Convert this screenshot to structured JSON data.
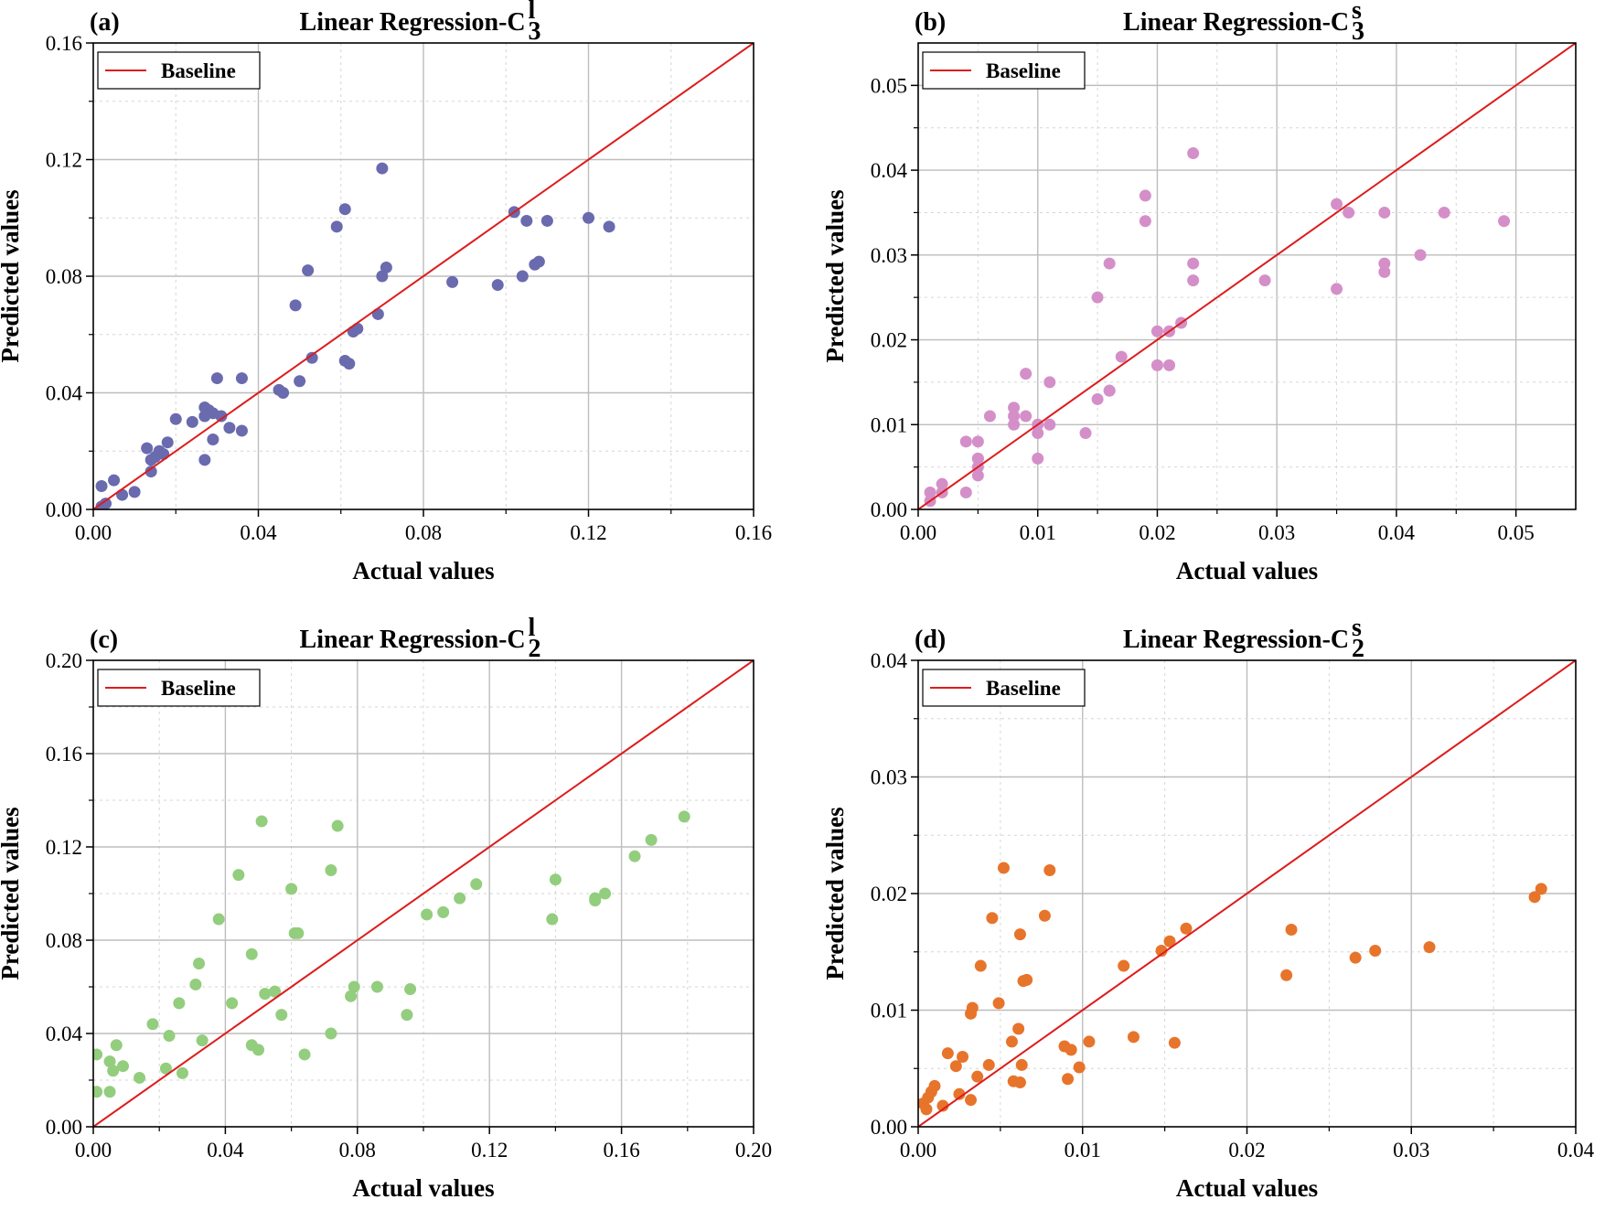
{
  "baseline_color": "#dd1c1c",
  "chart_data": [
    {
      "type": "scatter",
      "panel_label": "(a)",
      "title": "Linear Regression-C",
      "title_sup": "l",
      "title_sub": "3",
      "xlabel": "Actual values",
      "ylabel": "Predicted values",
      "xlim": [
        0,
        0.16
      ],
      "ylim": [
        0,
        0.16
      ],
      "xticks": [
        0,
        0.04,
        0.08,
        0.12,
        0.16
      ],
      "yticks": [
        0,
        0.04,
        0.08,
        0.12,
        0.16
      ],
      "xtick_labels": [
        "0.00",
        "0.04",
        "0.08",
        "0.12",
        "0.16"
      ],
      "ytick_labels": [
        "0.00",
        "0.04",
        "0.08",
        "0.12",
        "0.16"
      ],
      "color": "#6a6aaf",
      "legend": "Baseline",
      "legend_position": "top-left",
      "grid": true,
      "baseline": "y = x",
      "points": [
        [
          0.002,
          0.001
        ],
        [
          0.003,
          0.002
        ],
        [
          0.002,
          0.008
        ],
        [
          0.005,
          0.01
        ],
        [
          0.007,
          0.005
        ],
        [
          0.01,
          0.006
        ],
        [
          0.013,
          0.021
        ],
        [
          0.014,
          0.013
        ],
        [
          0.014,
          0.017
        ],
        [
          0.015,
          0.018
        ],
        [
          0.016,
          0.02
        ],
        [
          0.017,
          0.019
        ],
        [
          0.018,
          0.023
        ],
        [
          0.02,
          0.031
        ],
        [
          0.024,
          0.03
        ],
        [
          0.027,
          0.035
        ],
        [
          0.027,
          0.032
        ],
        [
          0.028,
          0.034
        ],
        [
          0.029,
          0.033
        ],
        [
          0.027,
          0.017
        ],
        [
          0.029,
          0.024
        ],
        [
          0.03,
          0.045
        ],
        [
          0.031,
          0.032
        ],
        [
          0.033,
          0.028
        ],
        [
          0.036,
          0.045
        ],
        [
          0.036,
          0.027
        ],
        [
          0.045,
          0.041
        ],
        [
          0.046,
          0.04
        ],
        [
          0.049,
          0.07
        ],
        [
          0.05,
          0.044
        ],
        [
          0.052,
          0.082
        ],
        [
          0.053,
          0.052
        ],
        [
          0.059,
          0.097
        ],
        [
          0.061,
          0.103
        ],
        [
          0.061,
          0.051
        ],
        [
          0.062,
          0.05
        ],
        [
          0.063,
          0.061
        ],
        [
          0.064,
          0.062
        ],
        [
          0.069,
          0.067
        ],
        [
          0.07,
          0.117
        ],
        [
          0.07,
          0.08
        ],
        [
          0.071,
          0.083
        ],
        [
          0.087,
          0.078
        ],
        [
          0.098,
          0.077
        ],
        [
          0.102,
          0.102
        ],
        [
          0.104,
          0.08
        ],
        [
          0.105,
          0.099
        ],
        [
          0.107,
          0.084
        ],
        [
          0.108,
          0.085
        ],
        [
          0.11,
          0.099
        ],
        [
          0.12,
          0.1
        ],
        [
          0.125,
          0.097
        ]
      ]
    },
    {
      "type": "scatter",
      "panel_label": "(b)",
      "title": "Linear Regression-C",
      "title_sup": "s",
      "title_sub": "3",
      "xlabel": "Actual values",
      "ylabel": "Predicted values",
      "xlim": [
        0,
        0.055
      ],
      "ylim": [
        0,
        0.055
      ],
      "xticks": [
        0,
        0.01,
        0.02,
        0.03,
        0.04,
        0.05
      ],
      "yticks": [
        0,
        0.01,
        0.02,
        0.03,
        0.04,
        0.05
      ],
      "xtick_labels": [
        "0.00",
        "0.01",
        "0.02",
        "0.03",
        "0.04",
        "0.05"
      ],
      "ytick_labels": [
        "0.00",
        "0.01",
        "0.02",
        "0.03",
        "0.04",
        "0.05"
      ],
      "color": "#d48fc8",
      "legend": "Baseline",
      "legend_position": "top-left",
      "grid": true,
      "baseline": "y = x",
      "points": [
        [
          0.001,
          0.001
        ],
        [
          0.001,
          0.002
        ],
        [
          0.002,
          0.003
        ],
        [
          0.002,
          0.002
        ],
        [
          0.004,
          0.002
        ],
        [
          0.004,
          0.008
        ],
        [
          0.005,
          0.006
        ],
        [
          0.005,
          0.004
        ],
        [
          0.005,
          0.005
        ],
        [
          0.005,
          0.006
        ],
        [
          0.005,
          0.008
        ],
        [
          0.006,
          0.011
        ],
        [
          0.008,
          0.01
        ],
        [
          0.008,
          0.011
        ],
        [
          0.008,
          0.012
        ],
        [
          0.009,
          0.011
        ],
        [
          0.009,
          0.016
        ],
        [
          0.01,
          0.01
        ],
        [
          0.01,
          0.009
        ],
        [
          0.01,
          0.006
        ],
        [
          0.011,
          0.01
        ],
        [
          0.011,
          0.015
        ],
        [
          0.014,
          0.009
        ],
        [
          0.015,
          0.013
        ],
        [
          0.015,
          0.025
        ],
        [
          0.016,
          0.014
        ],
        [
          0.016,
          0.014
        ],
        [
          0.016,
          0.029
        ],
        [
          0.017,
          0.018
        ],
        [
          0.019,
          0.034
        ],
        [
          0.019,
          0.037
        ],
        [
          0.02,
          0.017
        ],
        [
          0.02,
          0.021
        ],
        [
          0.021,
          0.021
        ],
        [
          0.021,
          0.017
        ],
        [
          0.022,
          0.022
        ],
        [
          0.023,
          0.027
        ],
        [
          0.023,
          0.029
        ],
        [
          0.023,
          0.042
        ],
        [
          0.029,
          0.027
        ],
        [
          0.035,
          0.026
        ],
        [
          0.035,
          0.036
        ],
        [
          0.036,
          0.035
        ],
        [
          0.039,
          0.035
        ],
        [
          0.039,
          0.028
        ],
        [
          0.039,
          0.029
        ],
        [
          0.042,
          0.03
        ],
        [
          0.044,
          0.035
        ],
        [
          0.049,
          0.034
        ]
      ]
    },
    {
      "type": "scatter",
      "panel_label": "(c)",
      "title": "Linear Regression-C",
      "title_sup": "l",
      "title_sub": "2",
      "xlabel": "Actual values",
      "ylabel": "Predicted values",
      "xlim": [
        0,
        0.2
      ],
      "ylim": [
        0,
        0.2
      ],
      "xticks": [
        0,
        0.04,
        0.08,
        0.12,
        0.16,
        0.2
      ],
      "yticks": [
        0,
        0.04,
        0.08,
        0.12,
        0.16,
        0.2
      ],
      "xtick_labels": [
        "0.00",
        "0.04",
        "0.08",
        "0.12",
        "0.16",
        "0.20"
      ],
      "ytick_labels": [
        "0.00",
        "0.04",
        "0.08",
        "0.12",
        "0.16",
        "0.20"
      ],
      "color": "#93cd7e",
      "legend": "Baseline",
      "legend_position": "top-left",
      "grid": true,
      "baseline": "y = x",
      "points": [
        [
          0.001,
          0.015
        ],
        [
          0.001,
          0.031
        ],
        [
          0.005,
          0.028
        ],
        [
          0.005,
          0.015
        ],
        [
          0.006,
          0.024
        ],
        [
          0.007,
          0.035
        ],
        [
          0.009,
          0.026
        ],
        [
          0.014,
          0.021
        ],
        [
          0.018,
          0.044
        ],
        [
          0.022,
          0.025
        ],
        [
          0.023,
          0.039
        ],
        [
          0.026,
          0.053
        ],
        [
          0.027,
          0.023
        ],
        [
          0.031,
          0.061
        ],
        [
          0.032,
          0.07
        ],
        [
          0.033,
          0.037
        ],
        [
          0.038,
          0.089
        ],
        [
          0.042,
          0.053
        ],
        [
          0.044,
          0.108
        ],
        [
          0.048,
          0.035
        ],
        [
          0.048,
          0.074
        ],
        [
          0.05,
          0.033
        ],
        [
          0.051,
          0.131
        ],
        [
          0.052,
          0.057
        ],
        [
          0.055,
          0.058
        ],
        [
          0.057,
          0.048
        ],
        [
          0.06,
          0.102
        ],
        [
          0.061,
          0.083
        ],
        [
          0.062,
          0.083
        ],
        [
          0.064,
          0.031
        ],
        [
          0.072,
          0.04
        ],
        [
          0.072,
          0.11
        ],
        [
          0.074,
          0.129
        ],
        [
          0.078,
          0.056
        ],
        [
          0.079,
          0.06
        ],
        [
          0.086,
          0.06
        ],
        [
          0.095,
          0.048
        ],
        [
          0.096,
          0.059
        ],
        [
          0.101,
          0.091
        ],
        [
          0.106,
          0.092
        ],
        [
          0.111,
          0.098
        ],
        [
          0.116,
          0.104
        ],
        [
          0.139,
          0.089
        ],
        [
          0.14,
          0.106
        ],
        [
          0.152,
          0.097
        ],
        [
          0.152,
          0.098
        ],
        [
          0.155,
          0.1
        ],
        [
          0.164,
          0.116
        ],
        [
          0.169,
          0.123
        ],
        [
          0.179,
          0.133
        ]
      ]
    },
    {
      "type": "scatter",
      "panel_label": "(d)",
      "title": "Linear Regression-C",
      "title_sup": "s",
      "title_sub": "2",
      "xlabel": "Actual values",
      "ylabel": "Predicted values",
      "xlim": [
        0,
        0.04
      ],
      "ylim": [
        0,
        0.04
      ],
      "xticks": [
        0,
        0.01,
        0.02,
        0.03,
        0.04
      ],
      "yticks": [
        0,
        0.01,
        0.02,
        0.03,
        0.04
      ],
      "xtick_labels": [
        "0.00",
        "0.01",
        "0.02",
        "0.03",
        "0.04"
      ],
      "ytick_labels": [
        "0.00",
        "0.01",
        "0.02",
        "0.03",
        "0.04"
      ],
      "color": "#e7742b",
      "legend": "Baseline",
      "legend_position": "top-left",
      "grid": true,
      "baseline": "y = x",
      "points": [
        [
          0.0003,
          0.002
        ],
        [
          0.0005,
          0.0015
        ],
        [
          0.0006,
          0.0025
        ],
        [
          0.0008,
          0.003
        ],
        [
          0.001,
          0.0035
        ],
        [
          0.0015,
          0.0018
        ],
        [
          0.0018,
          0.0063
        ],
        [
          0.0023,
          0.0052
        ],
        [
          0.0025,
          0.0028
        ],
        [
          0.0027,
          0.006
        ],
        [
          0.0032,
          0.0023
        ],
        [
          0.0032,
          0.0097
        ],
        [
          0.0033,
          0.0102
        ],
        [
          0.0036,
          0.0043
        ],
        [
          0.0038,
          0.0138
        ],
        [
          0.0043,
          0.0053
        ],
        [
          0.0045,
          0.0179
        ],
        [
          0.0049,
          0.0106
        ],
        [
          0.0052,
          0.0222
        ],
        [
          0.0057,
          0.0073
        ],
        [
          0.0058,
          0.0039
        ],
        [
          0.0061,
          0.0084
        ],
        [
          0.0062,
          0.0038
        ],
        [
          0.0062,
          0.0165
        ],
        [
          0.0063,
          0.0053
        ],
        [
          0.0064,
          0.0125
        ],
        [
          0.0066,
          0.0126
        ],
        [
          0.0077,
          0.0181
        ],
        [
          0.008,
          0.022
        ],
        [
          0.0089,
          0.0069
        ],
        [
          0.0091,
          0.0041
        ],
        [
          0.0093,
          0.0066
        ],
        [
          0.0098,
          0.0051
        ],
        [
          0.0104,
          0.0073
        ],
        [
          0.0125,
          0.0138
        ],
        [
          0.0131,
          0.0077
        ],
        [
          0.0148,
          0.0151
        ],
        [
          0.0153,
          0.0159
        ],
        [
          0.0156,
          0.0072
        ],
        [
          0.0163,
          0.017
        ],
        [
          0.0224,
          0.013
        ],
        [
          0.0227,
          0.0169
        ],
        [
          0.0266,
          0.0145
        ],
        [
          0.0278,
          0.0151
        ],
        [
          0.0311,
          0.0154
        ],
        [
          0.0375,
          0.0197
        ],
        [
          0.0379,
          0.0204
        ]
      ]
    }
  ]
}
